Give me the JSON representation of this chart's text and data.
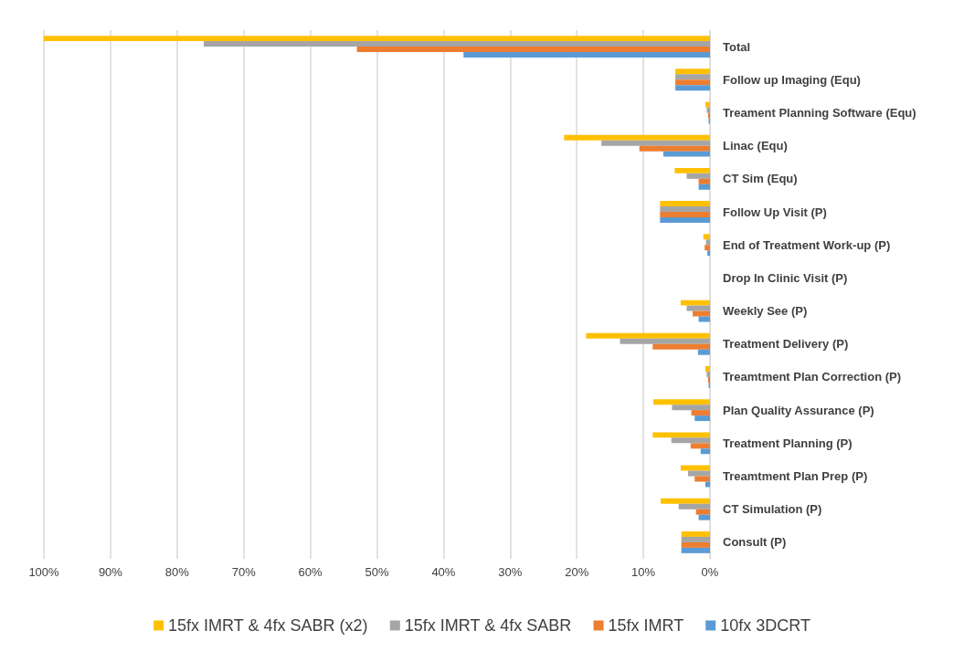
{
  "chart_data": {
    "type": "bar",
    "orientation": "horizontal",
    "categories": [
      "Total",
      "Follow up Imaging (Equ)",
      "Treament Planning Software (Equ)",
      "Linac (Equ)",
      "CT Sim (Equ)",
      "Follow Up Visit (P)",
      "End of Treatment Work-up (P)",
      "Drop In Clinic Visit (P)",
      "Weekly See (P)",
      "Treatment Delivery (P)",
      "Treamtment Plan Correction (P)",
      "Plan Quality Assurance (P)",
      "Treatment Planning (P)",
      "Treamtment Plan Prep (P)",
      "CT Simulation (P)",
      "Consult (P)"
    ],
    "series": [
      {
        "name": "15fx IMRT & 4fx SABR (x2)",
        "color": "#ffc000",
        "values": [
          100,
          5.2,
          0.7,
          21.9,
          5.3,
          7.5,
          1.0,
          0,
          4.4,
          18.6,
          0.7,
          8.5,
          8.6,
          4.4,
          7.4,
          4.3
        ]
      },
      {
        "name": "15fx IMRT & 4fx SABR",
        "color": "#a5a5a5",
        "values": [
          76,
          5.2,
          0.5,
          16.3,
          3.5,
          7.5,
          0.6,
          0,
          3.5,
          13.5,
          0.5,
          5.7,
          5.8,
          3.3,
          4.7,
          4.3
        ]
      },
      {
        "name": "15fx IMRT",
        "color": "#ed7d31",
        "values": [
          53,
          5.2,
          0.3,
          10.6,
          1.7,
          7.5,
          0.8,
          0,
          2.6,
          8.6,
          0.3,
          2.8,
          2.9,
          2.3,
          2.1,
          4.3
        ]
      },
      {
        "name": "10fx 3DCRT",
        "color": "#5b9bd5",
        "values": [
          37,
          5.2,
          0.2,
          7.0,
          1.7,
          7.5,
          0.4,
          0,
          1.7,
          1.8,
          0.2,
          2.3,
          1.4,
          0.7,
          1.7,
          4.3
        ]
      }
    ],
    "xlim": [
      100,
      0
    ],
    "xticks": [
      {
        "value": 100,
        "label": "100%"
      },
      {
        "value": 90,
        "label": "90%"
      },
      {
        "value": 80,
        "label": "80%"
      },
      {
        "value": 70,
        "label": "70%"
      },
      {
        "value": 60,
        "label": "60%"
      },
      {
        "value": 50,
        "label": "50%"
      },
      {
        "value": 40,
        "label": "40%"
      },
      {
        "value": 30,
        "label": "30%"
      },
      {
        "value": 20,
        "label": "20%"
      },
      {
        "value": 10,
        "label": "10%"
      },
      {
        "value": 0,
        "label": "0%"
      }
    ],
    "grid": "x",
    "legend": "bottom"
  }
}
